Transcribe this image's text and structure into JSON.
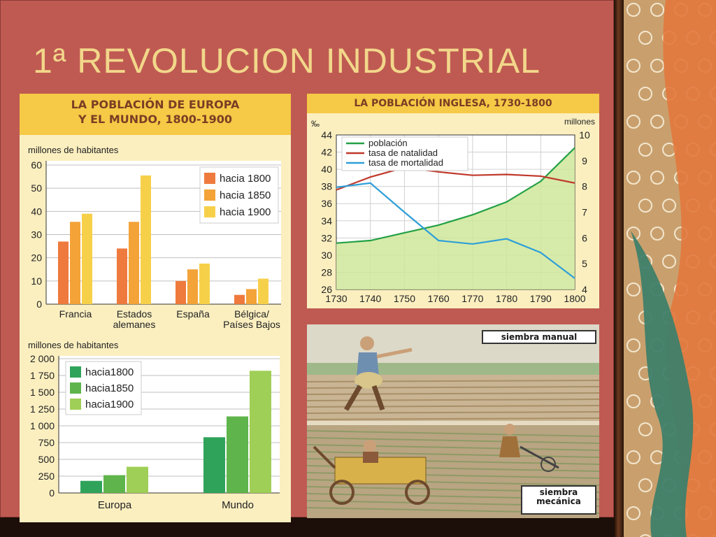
{
  "slide": {
    "title": "1ª REVOLUCION INDUSTRIAL"
  },
  "chart_data": [
    {
      "type": "bar",
      "title": "LA POBLACIÓN DE EUROPA Y EL MUNDO, 1800-1900",
      "title_lines": [
        "LA POBLACIÓN DE EUROPA",
        "Y EL MUNDO, 1800-1900"
      ],
      "ylabel": "millones de habitantes",
      "ylim": [
        0,
        60
      ],
      "yticks": [
        "0",
        "10",
        "20",
        "30",
        "40",
        "50",
        "60"
      ],
      "categories": [
        "Francia",
        "Estados alemanes",
        "España",
        "Bélgica/ Países Bajos"
      ],
      "category_lines": [
        [
          "Francia"
        ],
        [
          "Estados",
          "alemanes"
        ],
        [
          "España"
        ],
        [
          "Bélgica/",
          "Países Bajos"
        ]
      ],
      "series": [
        {
          "name": "hacia 1800",
          "color": "#ef7a3d",
          "values": [
            27,
            24,
            10,
            4
          ]
        },
        {
          "name": "hacia 1850",
          "color": "#f3a338",
          "values": [
            35.5,
            35.5,
            15,
            6.5
          ]
        },
        {
          "name": "hacia 1900",
          "color": "#f7d04a",
          "values": [
            39,
            55.5,
            17.5,
            11
          ]
        }
      ],
      "grid": true,
      "legend": "top-right"
    },
    {
      "type": "bar",
      "ylabel": "millones de habitantes",
      "ylim": [
        0,
        2000
      ],
      "yticks": [
        "0",
        "250",
        "500",
        "750",
        "1 000",
        "1 250",
        "1 500",
        "1 750",
        "2 000"
      ],
      "categories": [
        "Europa",
        "Mundo"
      ],
      "series": [
        {
          "name": "hacia1800",
          "color": "#2fa35a",
          "values": [
            180,
            830
          ]
        },
        {
          "name": "hacia1850",
          "color": "#5fb54c",
          "values": [
            265,
            1140
          ]
        },
        {
          "name": "hacia1900",
          "color": "#9fcf56",
          "values": [
            390,
            1820
          ]
        }
      ],
      "grid": true,
      "legend": "top-left"
    },
    {
      "type": "line",
      "title": "LA POBLACIÓN INGLESA, 1730-1800",
      "x": [
        1730,
        1740,
        1750,
        1760,
        1770,
        1780,
        1790,
        1800
      ],
      "xlim": [
        1730,
        1800
      ],
      "xticks": [
        "1730",
        "1740",
        "1750",
        "1760",
        "1770",
        "1780",
        "1790",
        "1800"
      ],
      "y_left_label": "‰",
      "y_left_lim": [
        26,
        44
      ],
      "y_left_ticks": [
        "26",
        "28",
        "30",
        "32",
        "34",
        "36",
        "38",
        "40",
        "42",
        "44"
      ],
      "y_right_label": "millones",
      "y_right_lim": [
        4,
        10
      ],
      "y_right_ticks": [
        "4",
        "5",
        "6",
        "7",
        "8",
        "9",
        "10"
      ],
      "series": [
        {
          "name": "población",
          "axis": "right",
          "color": "#23a045",
          "values": [
            5.8,
            5.9,
            6.2,
            6.5,
            6.9,
            7.4,
            8.2,
            9.5
          ]
        },
        {
          "name": "tasa de natalidad",
          "axis": "left",
          "color": "#c0392b",
          "values": [
            37.6,
            39.1,
            40.2,
            39.7,
            39.3,
            39.4,
            39.2,
            38.4
          ]
        },
        {
          "name": "tasa de mortalidad",
          "axis": "left",
          "color": "#2f9fd8",
          "values": [
            37.9,
            38.4,
            35.0,
            31.7,
            31.3,
            31.9,
            30.3,
            27.3
          ]
        }
      ],
      "grid": true,
      "legend": "top-left"
    }
  ],
  "illustration": {
    "label_top": "siembra manual",
    "label_bottom_lines": [
      "siembra",
      "mecánica"
    ]
  }
}
